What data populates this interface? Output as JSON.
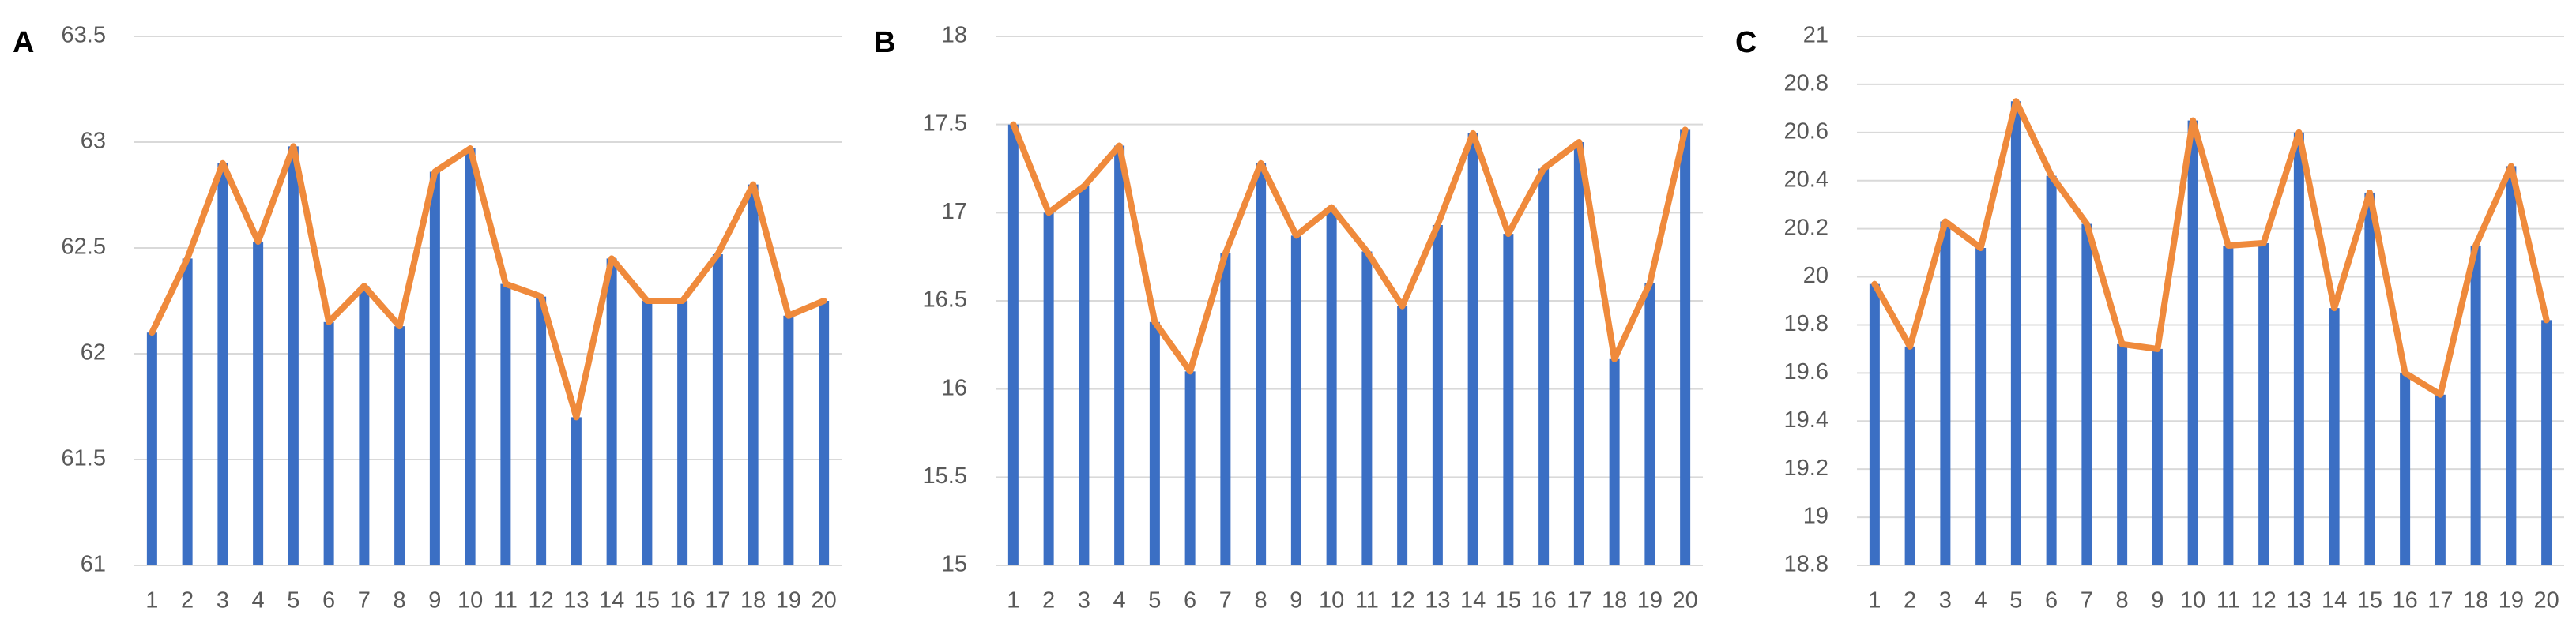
{
  "chart_data": [
    {
      "type": "bar_line",
      "label": "A",
      "categories": [
        "1",
        "2",
        "3",
        "4",
        "5",
        "6",
        "7",
        "8",
        "9",
        "10",
        "11",
        "12",
        "13",
        "14",
        "15",
        "16",
        "17",
        "18",
        "19",
        "20"
      ],
      "values": [
        62.1,
        62.45,
        62.9,
        62.53,
        62.98,
        62.15,
        62.32,
        62.13,
        62.86,
        62.97,
        62.33,
        62.27,
        61.7,
        62.45,
        62.25,
        62.25,
        62.47,
        62.8,
        62.18,
        62.25
      ],
      "bar_color": "#3b6fc4",
      "line_color": "#ef8a3c",
      "ylim": [
        61,
        63.5
      ],
      "yticks": [
        61,
        61.5,
        62,
        62.5,
        63,
        63.5
      ],
      "grid": true
    },
    {
      "type": "bar_line",
      "label": "B",
      "categories": [
        "1",
        "2",
        "3",
        "4",
        "5",
        "6",
        "7",
        "8",
        "9",
        "10",
        "11",
        "12",
        "13",
        "14",
        "15",
        "16",
        "17",
        "18",
        "19",
        "20"
      ],
      "values": [
        17.5,
        17.0,
        17.15,
        17.38,
        16.38,
        16.1,
        16.77,
        17.28,
        16.87,
        17.03,
        16.78,
        16.47,
        16.93,
        17.45,
        16.88,
        17.25,
        17.4,
        16.17,
        16.6,
        17.47
      ],
      "bar_color": "#3b6fc4",
      "line_color": "#ef8a3c",
      "ylim": [
        15,
        18
      ],
      "yticks": [
        15,
        15.5,
        16,
        16.5,
        17,
        17.5,
        18
      ],
      "grid": true
    },
    {
      "type": "bar_line",
      "label": "C",
      "categories": [
        "1",
        "2",
        "3",
        "4",
        "5",
        "6",
        "7",
        "8",
        "9",
        "10",
        "11",
        "12",
        "13",
        "14",
        "15",
        "16",
        "17",
        "18",
        "19",
        "20"
      ],
      "values": [
        19.97,
        19.71,
        20.23,
        20.12,
        20.73,
        20.42,
        20.22,
        19.72,
        19.7,
        20.65,
        20.13,
        20.14,
        20.6,
        19.87,
        20.35,
        19.6,
        19.51,
        20.13,
        20.46,
        19.82
      ],
      "bar_color": "#3b6fc4",
      "line_color": "#ef8a3c",
      "ylim": [
        18.8,
        21
      ],
      "yticks": [
        18.8,
        19,
        19.2,
        19.4,
        19.6,
        19.8,
        20,
        20.2,
        20.4,
        20.6,
        20.8,
        21
      ],
      "grid": true
    }
  ]
}
